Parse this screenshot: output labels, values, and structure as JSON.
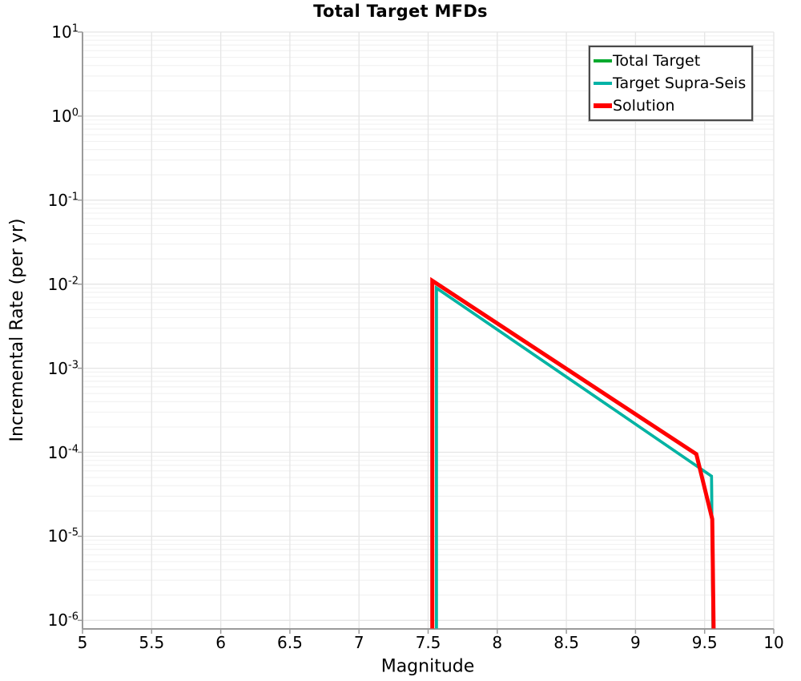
{
  "title": "Total Target MFDs",
  "axes": {
    "xlabel": "Magnitude",
    "ylabel": "Incremental Rate (per yr)",
    "x_tick_labels": [
      "5",
      "5.5",
      "6",
      "6.5",
      "7",
      "7.5",
      "8",
      "8.5",
      "9",
      "9.5",
      "10"
    ],
    "y_tick_base": "10",
    "y_tick_exponents": [
      1,
      0,
      -1,
      -2,
      -3,
      -4,
      -5,
      -6
    ]
  },
  "chart_data": {
    "type": "line",
    "title": "Total Target MFDs",
    "xlabel": "Magnitude",
    "ylabel": "Incremental Rate (per yr)",
    "xlim": [
      5,
      10
    ],
    "ylim": [
      1e-06,
      10
    ],
    "yscale": "log",
    "xscale": "linear",
    "grid": true,
    "x_grid_step": 0.5,
    "legend_position": "top-right",
    "series": [
      {
        "name": "Total Target",
        "color": "#00a92d",
        "width": 3.5,
        "points": [
          [
            7.56,
            8e-07
          ],
          [
            7.56,
            0.009
          ],
          [
            9.55,
            5.2e-05
          ],
          [
            9.56,
            8e-07
          ]
        ]
      },
      {
        "name": "Target Supra-Seis",
        "color": "#00b3a6",
        "width": 3.5,
        "points": [
          [
            7.56,
            8e-07
          ],
          [
            7.56,
            0.009
          ],
          [
            9.55,
            5.2e-05
          ],
          [
            9.56,
            8e-07
          ]
        ]
      },
      {
        "name": "Solution",
        "color": "#ff0000",
        "width": 5,
        "points": [
          [
            7.53,
            8e-07
          ],
          [
            7.53,
            0.011
          ],
          [
            9.44,
            9.5e-05
          ],
          [
            9.555,
            1.6e-05
          ],
          [
            9.565,
            8e-07
          ]
        ]
      }
    ]
  }
}
